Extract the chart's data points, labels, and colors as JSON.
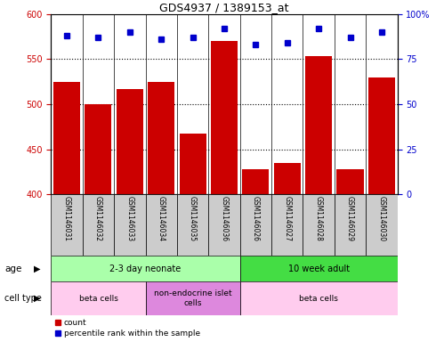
{
  "title": "GDS4937 / 1389153_at",
  "samples": [
    "GSM1146031",
    "GSM1146032",
    "GSM1146033",
    "GSM1146034",
    "GSM1146035",
    "GSM1146036",
    "GSM1146026",
    "GSM1146027",
    "GSM1146028",
    "GSM1146029",
    "GSM1146030"
  ],
  "bar_values": [
    525,
    500,
    517,
    525,
    467,
    570,
    428,
    435,
    553,
    428,
    530
  ],
  "percentile_values": [
    88,
    87,
    90,
    86,
    87,
    92,
    83,
    84,
    92,
    87,
    90
  ],
  "ylim_left": [
    400,
    600
  ],
  "ylim_right": [
    0,
    100
  ],
  "yticks_left": [
    400,
    450,
    500,
    550,
    600
  ],
  "yticks_right": [
    0,
    25,
    50,
    75,
    100
  ],
  "bar_color": "#cc0000",
  "dot_color": "#0000cc",
  "age_groups": [
    {
      "label": "2-3 day neonate",
      "start": 0,
      "end": 6,
      "color": "#aaffaa"
    },
    {
      "label": "10 week adult",
      "start": 6,
      "end": 11,
      "color": "#44dd44"
    }
  ],
  "cell_type_groups": [
    {
      "label": "beta cells",
      "start": 0,
      "end": 3,
      "color": "#ffccee"
    },
    {
      "label": "non-endocrine islet\ncells",
      "start": 3,
      "end": 6,
      "color": "#dd88dd"
    },
    {
      "label": "beta cells",
      "start": 6,
      "end": 11,
      "color": "#ffccee"
    }
  ],
  "bg_color": "white",
  "tick_label_bg": "#cccccc",
  "dotted_lines": [
    450,
    500,
    550
  ]
}
